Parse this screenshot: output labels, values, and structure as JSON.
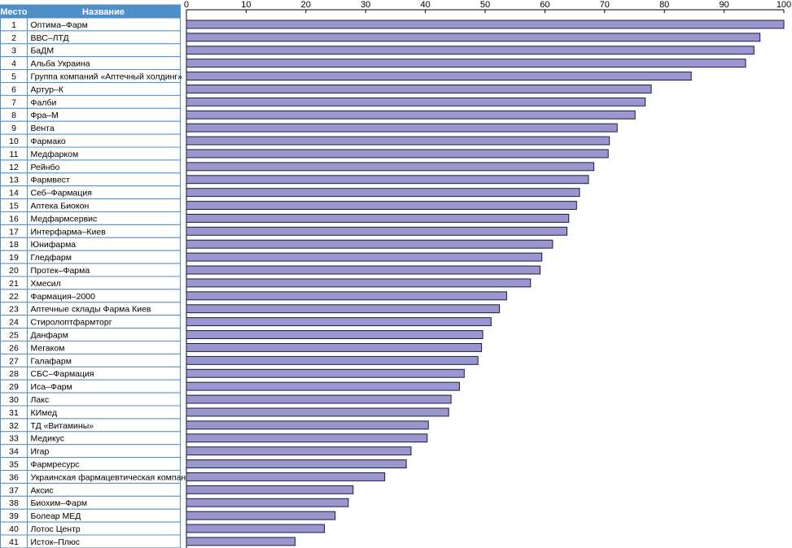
{
  "colors": {
    "header_bg": "#4f8fc8",
    "header_text": "#ffffff",
    "border": "#4f8fc8",
    "bar_fill": "#9a96cf",
    "bar_stroke": "#1c1a3a",
    "axis": "#000000"
  },
  "table": {
    "col_rank": "Место",
    "col_name": "Название"
  },
  "chart_data": {
    "type": "bar",
    "orientation": "horizontal",
    "xlim": [
      0,
      100
    ],
    "x_ticks": [
      "0",
      "10",
      "20",
      "30",
      "40",
      "50",
      "60",
      "70",
      "80",
      "90",
      "100"
    ],
    "grid": false,
    "ranks": [
      "1",
      "2",
      "3",
      "4",
      "5",
      "6",
      "7",
      "8",
      "9",
      "10",
      "11",
      "12",
      "13",
      "14",
      "15",
      "16",
      "17",
      "18",
      "19",
      "20",
      "21",
      "22",
      "23",
      "24",
      "25",
      "26",
      "27",
      "28",
      "29",
      "30",
      "31",
      "32",
      "33",
      "34",
      "35",
      "36",
      "37",
      "38",
      "39",
      "40",
      "41"
    ],
    "categories": [
      "Оптима–Фарм",
      "ВВС–ЛТД",
      "БаДМ",
      "Альба Украина",
      "Группа компаний «Аптечный холдинг»",
      "Артур–К",
      "Фалби",
      "Фра–М",
      "Вента",
      "Фармако",
      "Медфарком",
      "Рейнбо",
      "Фармвест",
      "Себ–Фармация",
      "Аптека Биокон",
      "Медфармсервис",
      "Интерфарма–Киев",
      "Юнифарма",
      "Гледфарм",
      "Протек–Фарма",
      "Хмесил",
      "Фармация–2000",
      "Аптечные склады Фарма Киев",
      "Стиролоптфармторг",
      "Данфарм",
      "Мегаком",
      "Галафарм",
      "СБС–Фармация",
      "Иса–Фарм",
      "Лакс",
      "КИмед",
      "ТД «Витамины»",
      "Медикус",
      "Игар",
      "Фармресурс",
      "Украинская фармацевтическая компания",
      "Аксис",
      "Биохим–Фарм",
      "Болеар МЕД",
      "Лотос Центр",
      "Исток–Плюс"
    ],
    "values": [
      100,
      96,
      95,
      93.6,
      84.5,
      77.8,
      76.8,
      75.1,
      72.1,
      70.8,
      70.6,
      68.2,
      67.3,
      65.8,
      65.3,
      64,
      63.7,
      61.3,
      59.5,
      59.2,
      57.6,
      53.6,
      52.4,
      51,
      49.6,
      49.4,
      48.8,
      46.5,
      45.7,
      44.3,
      43.9,
      40.5,
      40.3,
      37.6,
      36.8,
      33.2,
      27.9,
      27.1,
      24.9,
      23.1,
      18.2
    ]
  }
}
